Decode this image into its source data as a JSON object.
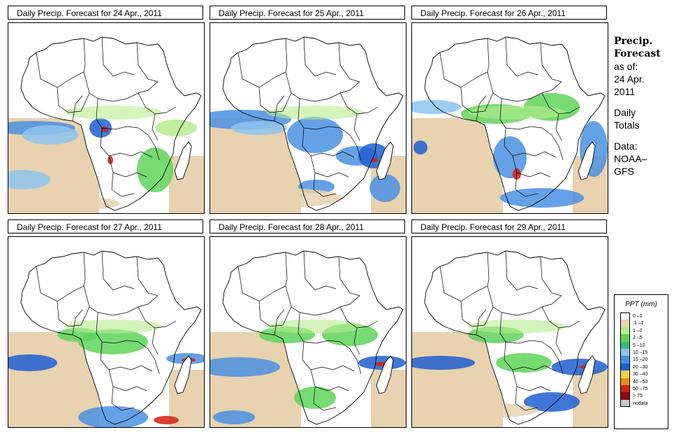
{
  "panels": [
    {
      "title": "Daily Precip. Forecast for  24 Apr., 2011"
    },
    {
      "title": "Daily Precip. Forecast for  25 Apr., 2011"
    },
    {
      "title": "Daily Precip. Forecast for  26 Apr., 2011"
    },
    {
      "title": "Daily Precip. Forecast for  27 Apr., 2011"
    },
    {
      "title": "Daily Precip. Forecast for  28 Apr., 2011"
    },
    {
      "title": "Daily Precip. Forecast for  29 Apr., 2011"
    }
  ],
  "sidebar": {
    "heading1": "Precip.",
    "heading2": "Forecast",
    "asof": "as of:",
    "date1": "24 Apr.",
    "date2": "2011",
    "totals1": "Daily",
    "totals2": "Totals",
    "data1": "Data:",
    "data2": "NOAA–",
    "data3": "GFS"
  },
  "legend": {
    "title": "PPT (mm)",
    "items": [
      {
        "label": "0 –1",
        "color": "#ffffff"
      },
      {
        "label": ".1 –1",
        "color": "#e8d2b0"
      },
      {
        "label": "1 –2",
        "color": "#b7ec8f"
      },
      {
        "label": "2 –5",
        "color": "#5fd45a"
      },
      {
        "label": "5 –10",
        "color": "#2fbf7a"
      },
      {
        "label": "10 –15",
        "color": "#8ec4f0"
      },
      {
        "label": "15 –20",
        "color": "#4a90e2"
      },
      {
        "label": "20 –30",
        "color": "#1f5fd0"
      },
      {
        "label": "30 –40",
        "color": "#f2d24a"
      },
      {
        "label": "40 –50",
        "color": "#f08a1c"
      },
      {
        "label": "50 –75",
        "color": "#d42010"
      },
      {
        "label": "> 75",
        "color": "#8c0d0d"
      },
      {
        "label": "nodata",
        "color": "#c8c8c8"
      }
    ]
  }
}
